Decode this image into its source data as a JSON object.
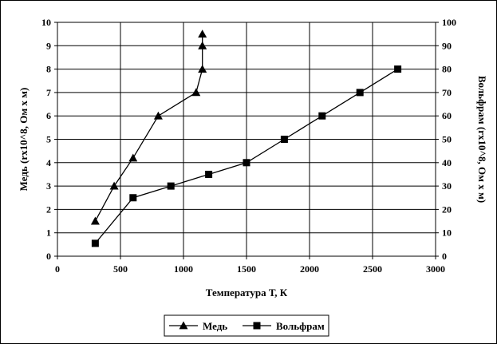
{
  "chart_data": {
    "type": "line",
    "xlabel": "Температура Т, К",
    "ylabel_left": "Медь (rx10^8, Ом х м)",
    "ylabel_right": "Вольфрам (rx10^8, Ом х м)",
    "xlim": [
      0,
      3000
    ],
    "ylim_left": [
      0,
      10
    ],
    "ylim_right": [
      0,
      100
    ],
    "x_ticks": [
      "0",
      "500",
      "1000",
      "1500",
      "2000",
      "2500",
      "3000"
    ],
    "y_left_ticks": [
      "0",
      "1",
      "2",
      "3",
      "4",
      "5",
      "6",
      "7",
      "8",
      "9",
      "10"
    ],
    "y_right_ticks": [
      "0",
      "10",
      "20",
      "30",
      "40",
      "50",
      "60",
      "70",
      "80",
      "90",
      "100"
    ],
    "grid": true,
    "legend_position": "bottom-right",
    "series": [
      {
        "name": "Медь",
        "axis": "left",
        "marker": "triangle",
        "points": [
          [
            300,
            1.5
          ],
          [
            450,
            3.0
          ],
          [
            600,
            4.2
          ],
          [
            800,
            6.0
          ],
          [
            1100,
            7.0
          ],
          [
            1150,
            8.0
          ],
          [
            1150,
            9.0
          ],
          [
            1150,
            9.5
          ]
        ]
      },
      {
        "name": "Вольфрам",
        "axis": "right",
        "marker": "square",
        "points": [
          [
            300,
            5.5
          ],
          [
            600,
            25
          ],
          [
            900,
            30
          ],
          [
            1200,
            35
          ],
          [
            1500,
            40
          ],
          [
            1800,
            50
          ],
          [
            2100,
            60
          ],
          [
            2400,
            70
          ],
          [
            2700,
            80
          ]
        ]
      }
    ]
  }
}
